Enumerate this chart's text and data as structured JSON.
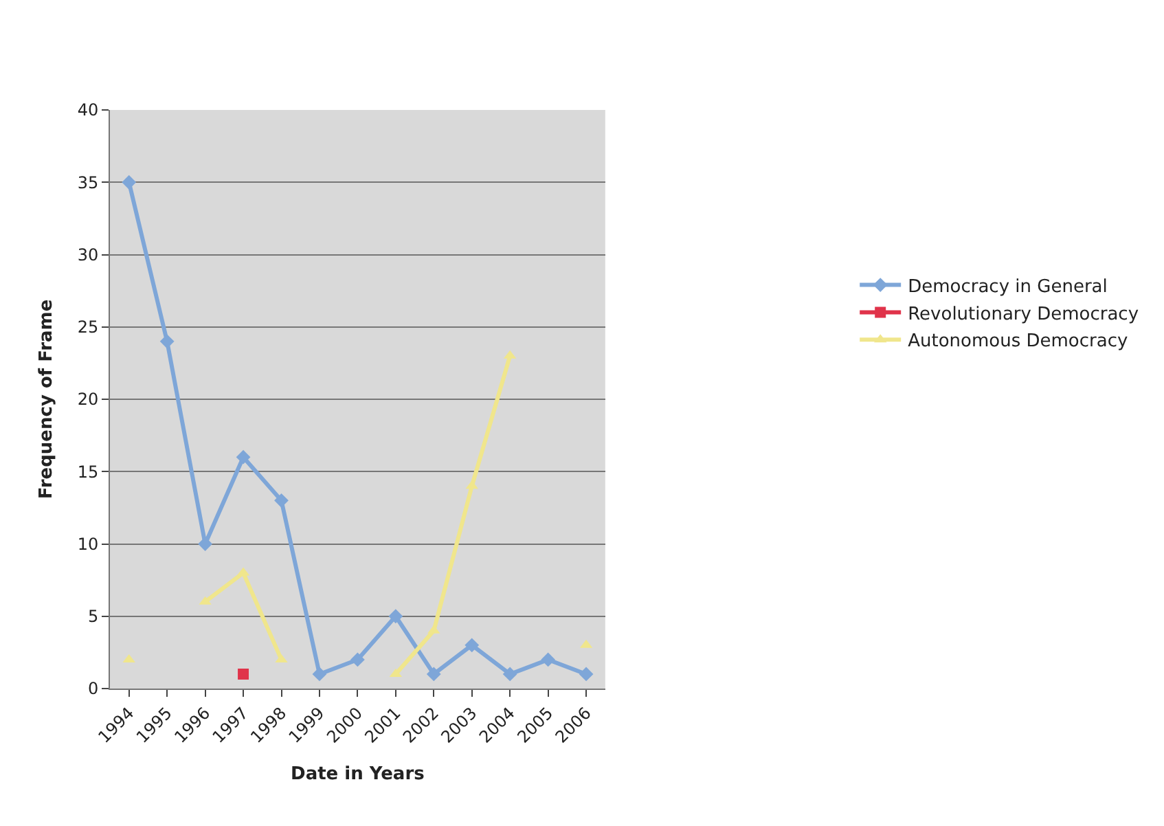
{
  "chart_data": {
    "type": "line",
    "xlabel": "Date in Years",
    "ylabel": "Frequency of Frame",
    "categories": [
      "1994",
      "1995",
      "1996",
      "1997",
      "1998",
      "1999",
      "2000",
      "2001",
      "2002",
      "2003",
      "2004",
      "2005",
      "2006"
    ],
    "series": [
      {
        "name": "Democracy in General",
        "color": "#7ea6d8",
        "marker": "diamond",
        "values": [
          35,
          24,
          10,
          16,
          13,
          1,
          2,
          5,
          1,
          3,
          1,
          2,
          1
        ]
      },
      {
        "name": "Revolutionary Democracy",
        "color": "#e0334a",
        "marker": "square",
        "values": [
          null,
          null,
          null,
          1,
          null,
          null,
          null,
          null,
          null,
          null,
          null,
          null,
          null
        ]
      },
      {
        "name": "Autonomous Democracy",
        "color": "#f0e68c",
        "marker": "triangle",
        "values": [
          2,
          null,
          6,
          8,
          2,
          null,
          null,
          1,
          4,
          14,
          23,
          null,
          3
        ]
      }
    ],
    "ylim": [
      0,
      40
    ],
    "yticks": [
      0,
      5,
      10,
      15,
      20,
      25,
      30,
      35,
      40
    ],
    "grid": "y",
    "legend": "right"
  }
}
